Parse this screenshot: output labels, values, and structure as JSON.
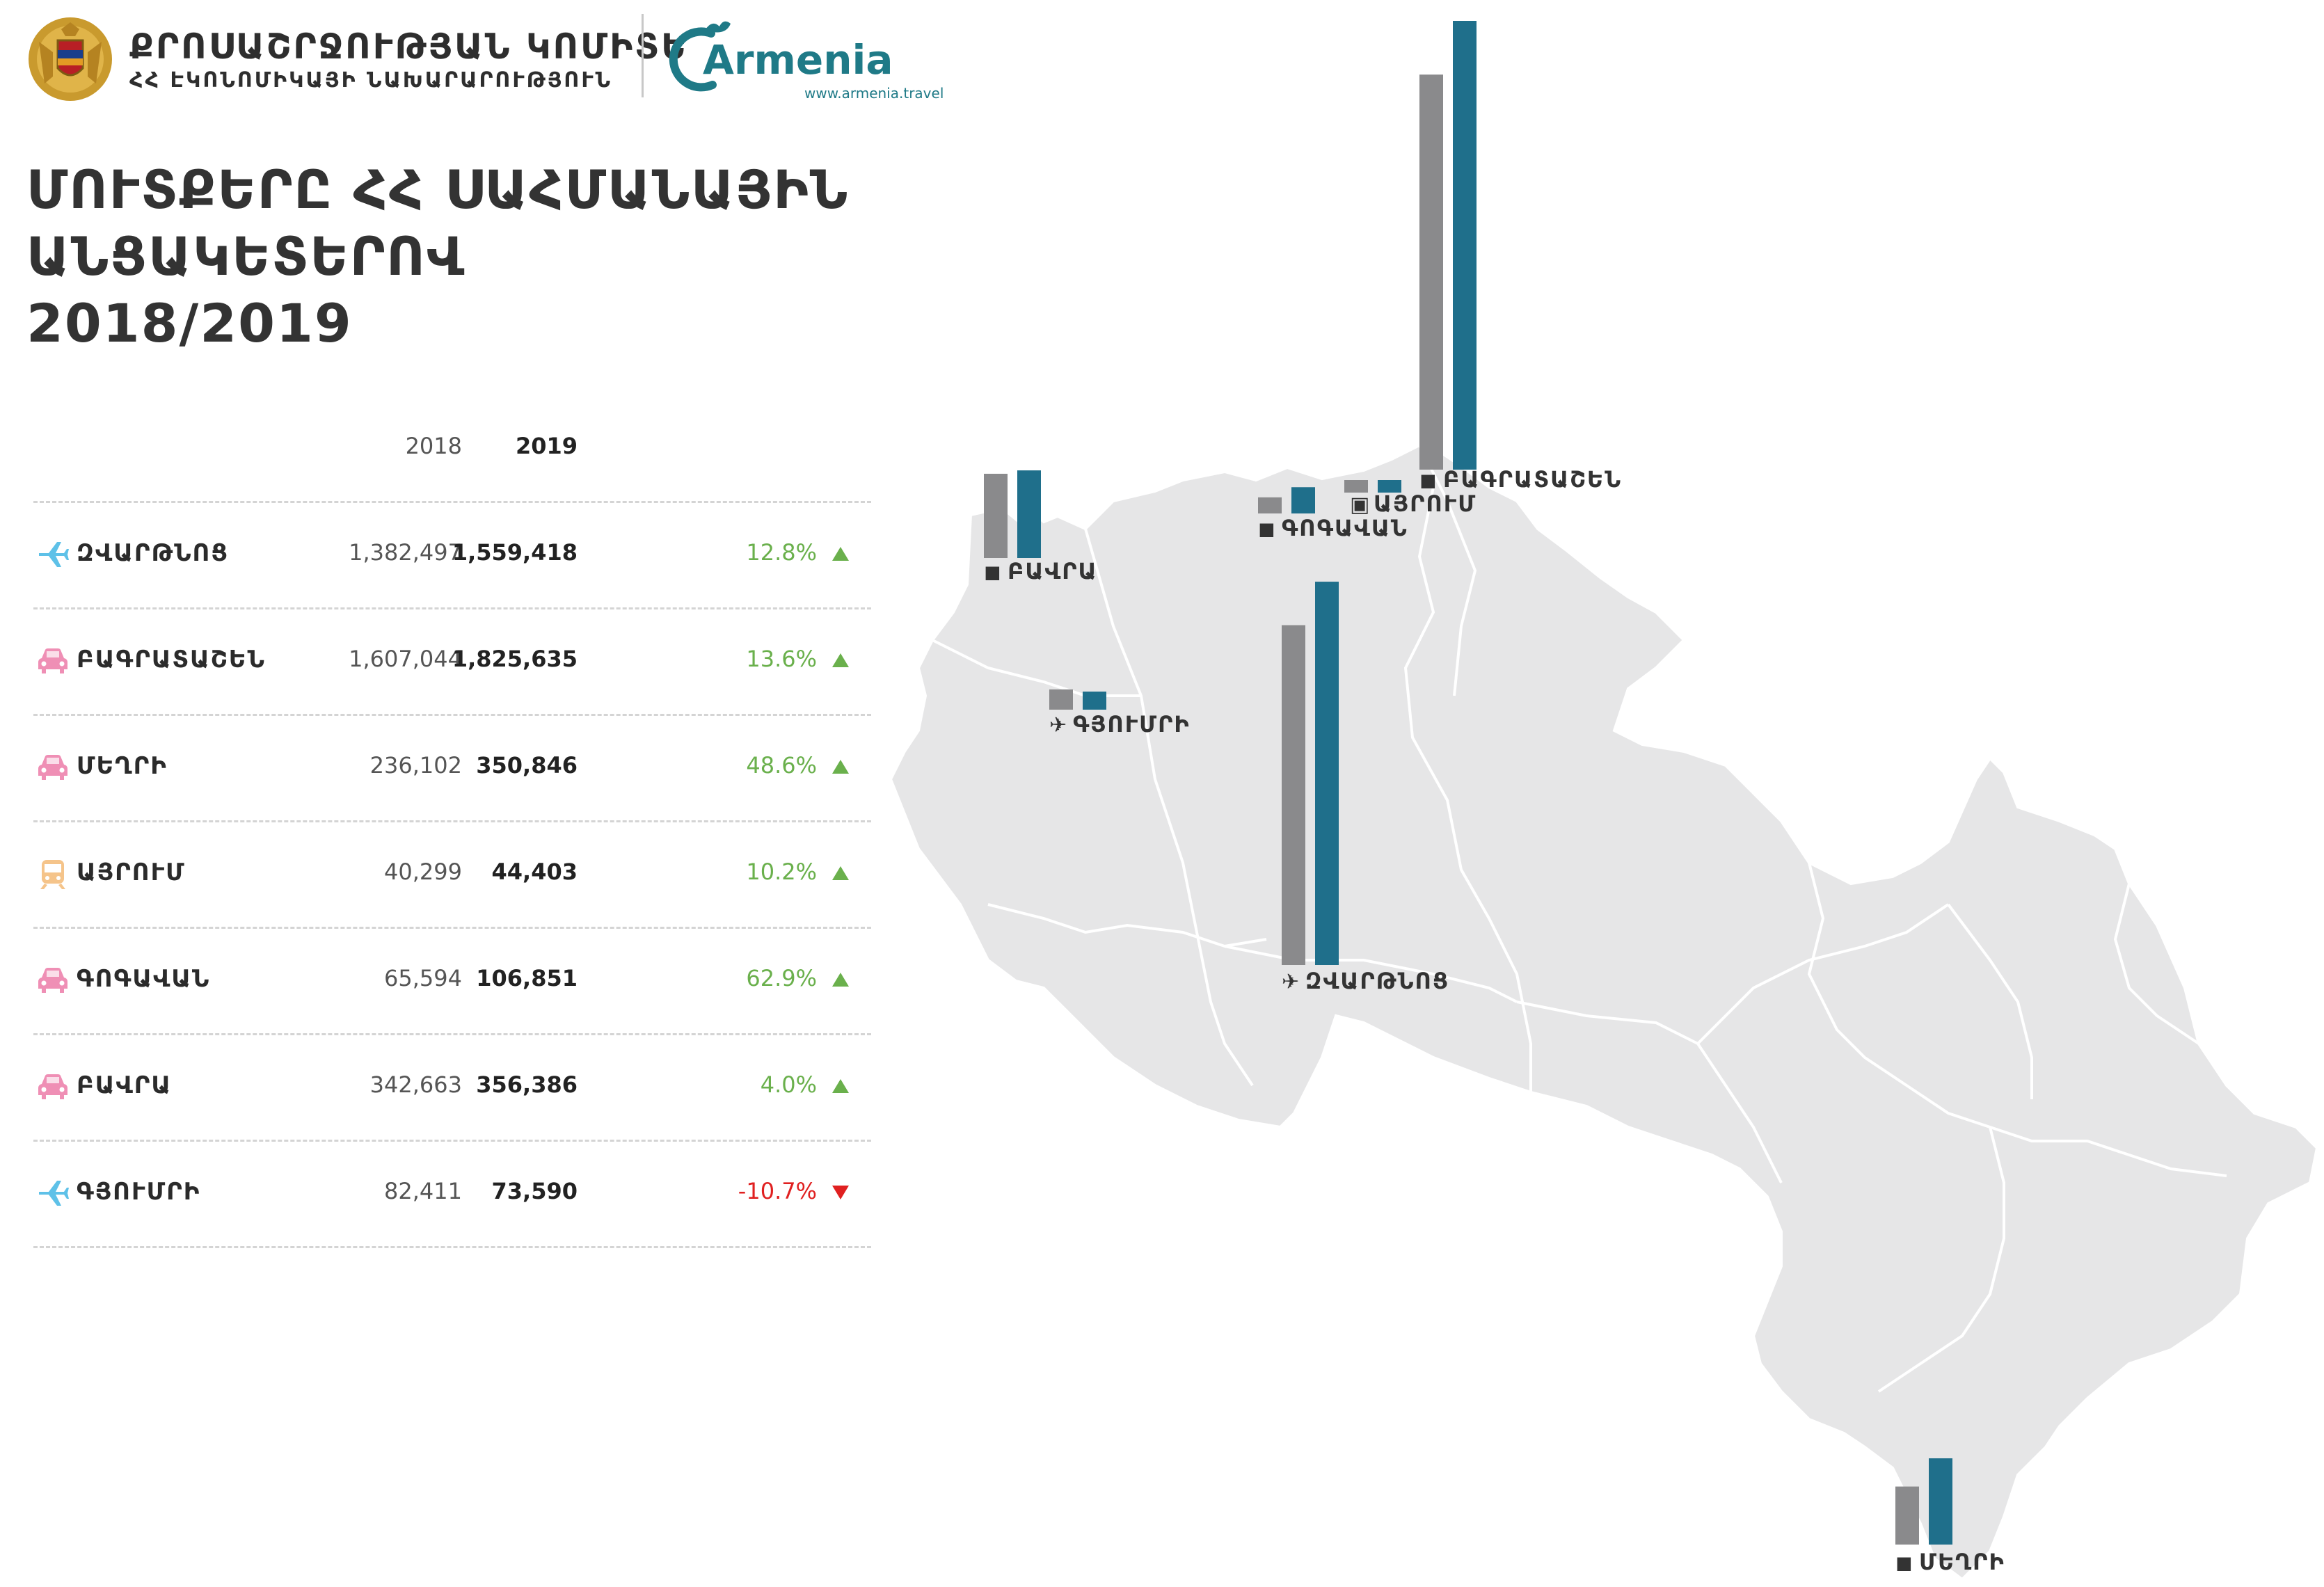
{
  "header": {
    "committee_line1": "ՔՐՈՍԱՇՐՋՈՒԹՅԱՆ ԿՈՄԻՏԵ",
    "committee_line2": "ՀՀ ԷԿՈՆՈՄԻԿԱՅԻ ՆԱԽԱՐԱՐՈՒԹՅՈՒՆ",
    "brand_url": "www.armenia.travel"
  },
  "title": {
    "line1": "ՄՈՒՏՔԵՐԸ ՀՀ ՍԱՀՄԱՆԱՅԻՆ",
    "line2": "ԱՆՑԱԿԵՏԵՐՈՎ",
    "line3": "2018/2019"
  },
  "colors": {
    "bar_2018": "#8a8a8c",
    "bar_2019": "#1f6f8b",
    "map_fill": "#e6e6e7",
    "up": "#6ab04c",
    "down": "#e02020",
    "airplane": "#5ec1e8",
    "car": "#ef8fb5",
    "train": "#f5c48a"
  },
  "chart_data": {
    "type": "table",
    "columns": [
      "2018",
      "2019"
    ],
    "rows": [
      {
        "name": "ԶՎԱՐԹՆՈՑ",
        "icon": "airplane-icon",
        "v2018": 1382497,
        "v2019": 1559418,
        "v2018_label": "1,382,497",
        "v2019_label": "1,559,418",
        "change": "12.8%",
        "direction": "up"
      },
      {
        "name": "ԲԱԳՐԱՏԱՇԵՆ",
        "icon": "car-icon",
        "v2018": 1607044,
        "v2019": 1825635,
        "v2018_label": "1,607,044",
        "v2019_label": "1,825,635",
        "change": "13.6%",
        "direction": "up"
      },
      {
        "name": "ՄԵՂՐԻ",
        "icon": "car-icon",
        "v2018": 236102,
        "v2019": 350846,
        "v2018_label": "236,102",
        "v2019_label": "350,846",
        "change": "48.6%",
        "direction": "up"
      },
      {
        "name": "ԱՅՐՈՒՄ",
        "icon": "train-icon",
        "v2018": 40299,
        "v2019": 44403,
        "v2018_label": "40,299",
        "v2019_label": "44,403",
        "change": "10.2%",
        "direction": "up"
      },
      {
        "name": "ԳՈԳԱՎԱՆ",
        "icon": "car-icon",
        "v2018": 65594,
        "v2019": 106851,
        "v2018_label": "65,594",
        "v2019_label": "106,851",
        "change": "62.9%",
        "direction": "up"
      },
      {
        "name": "ԲԱՎՐԱ",
        "icon": "car-icon",
        "v2018": 342663,
        "v2019": 356386,
        "v2018_label": "342,663",
        "v2019_label": "356,386",
        "change": "4.0%",
        "direction": "up"
      },
      {
        "name": "ԳՅՈՒՄՐԻ",
        "icon": "airplane-icon",
        "v2018": 82411,
        "v2019": 73590,
        "v2018_label": "82,411",
        "v2019_label": "73,590",
        "change": "-10.7%",
        "direction": "down"
      }
    ]
  }
}
